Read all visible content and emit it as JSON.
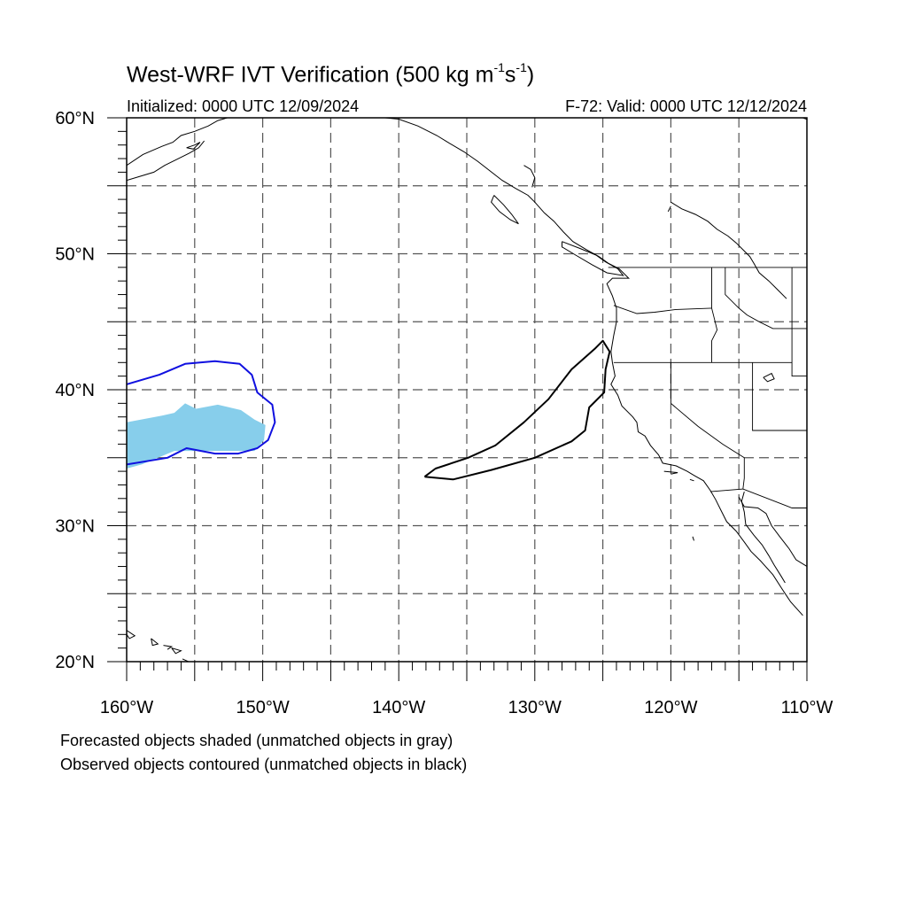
{
  "title": {
    "main": "West-WRF IVT Verification (500 kg m",
    "sup1": "-1",
    "mid": "s",
    "sup2": "-1",
    "close": ")"
  },
  "subtitle_left": "Initialized: 0000 UTC 12/09/2024",
  "subtitle_right": "F-72: Valid: 0000 UTC 12/12/2024",
  "caption_line1": "Forecasted objects shaded (unmatched objects in gray)",
  "caption_line2": "Observed objects contoured (unmatched objects in black)",
  "map": {
    "lon_range": [
      -160,
      -110
    ],
    "lat_range": [
      20,
      60
    ],
    "lat_ticks": [
      {
        "value": 60,
        "label": "60°N"
      },
      {
        "value": 50,
        "label": "50°N"
      },
      {
        "value": 40,
        "label": "40°N"
      },
      {
        "value": 30,
        "label": "30°N"
      },
      {
        "value": 20,
        "label": "20°N"
      }
    ],
    "lon_ticks": [
      {
        "value": -160,
        "label": "160°W"
      },
      {
        "value": -150,
        "label": "150°W"
      },
      {
        "value": -140,
        "label": "140°W"
      },
      {
        "value": -130,
        "label": "130°W"
      },
      {
        "value": -120,
        "label": "120°W"
      },
      {
        "value": -110,
        "label": "110°W"
      }
    ],
    "gridline_interval_deg": 5,
    "colors": {
      "forecast_matched_fill": "#87ceeb",
      "observed_matched_contour": "#1010e0",
      "observed_unmatched_contour": "#000000",
      "coastline": "#000000",
      "gridline": "#555555"
    }
  },
  "chart_data": {
    "type": "map",
    "projection": "cylindrical equidistant",
    "extent": {
      "lon": [
        -160,
        -110
      ],
      "lat": [
        20,
        60
      ]
    },
    "gridlines": "dashed every 5 degrees",
    "objects": [
      {
        "kind": "forecast",
        "style": "shaded",
        "matched": true,
        "color": "#87ceeb",
        "polygon": [
          [
            -160,
            37.6
          ],
          [
            -157.4,
            38.1
          ],
          [
            -156.5,
            38.3
          ],
          [
            -155.7,
            39.0
          ],
          [
            -154.9,
            38.6
          ],
          [
            -153.3,
            38.9
          ],
          [
            -151.6,
            38.5
          ],
          [
            -150.6,
            37.8
          ],
          [
            -149.8,
            37.4
          ],
          [
            -149.9,
            36.3
          ],
          [
            -150.6,
            35.5
          ],
          [
            -156.5,
            35.5
          ],
          [
            -158.9,
            34.5
          ],
          [
            -160,
            34.2
          ]
        ]
      },
      {
        "kind": "observed",
        "style": "contour",
        "matched": true,
        "color": "#1010e0",
        "polyline": [
          [
            -160,
            40.4
          ],
          [
            -157.6,
            41.1
          ],
          [
            -155.7,
            41.9
          ],
          [
            -153.5,
            42.1
          ],
          [
            -151.7,
            41.9
          ],
          [
            -150.8,
            41.1
          ],
          [
            -150.4,
            39.8
          ],
          [
            -149.3,
            38.9
          ],
          [
            -149.1,
            37.6
          ],
          [
            -149.6,
            36.3
          ],
          [
            -150.4,
            35.7
          ],
          [
            -151.8,
            35.3
          ],
          [
            -153.5,
            35.3
          ],
          [
            -155.6,
            35.7
          ],
          [
            -157.0,
            35.0
          ],
          [
            -160,
            34.5
          ]
        ]
      },
      {
        "kind": "observed",
        "style": "contour",
        "matched": false,
        "color": "#000000",
        "polyline": [
          [
            -138.1,
            33.6
          ],
          [
            -137.3,
            34.2
          ],
          [
            -134.9,
            35.0
          ],
          [
            -132.9,
            35.9
          ],
          [
            -130.8,
            37.6
          ],
          [
            -129.0,
            39.3
          ],
          [
            -127.3,
            41.5
          ],
          [
            -125.6,
            43.0
          ],
          [
            -125.0,
            43.6
          ],
          [
            -124.5,
            42.8
          ],
          [
            -124.8,
            41.5
          ],
          [
            -124.9,
            39.8
          ],
          [
            -126.0,
            38.7
          ],
          [
            -126.3,
            37.0
          ],
          [
            -127.3,
            36.2
          ],
          [
            -130.0,
            35.0
          ],
          [
            -133.2,
            34.1
          ],
          [
            -136.0,
            33.4
          ],
          [
            -138.1,
            33.6
          ]
        ]
      }
    ]
  }
}
